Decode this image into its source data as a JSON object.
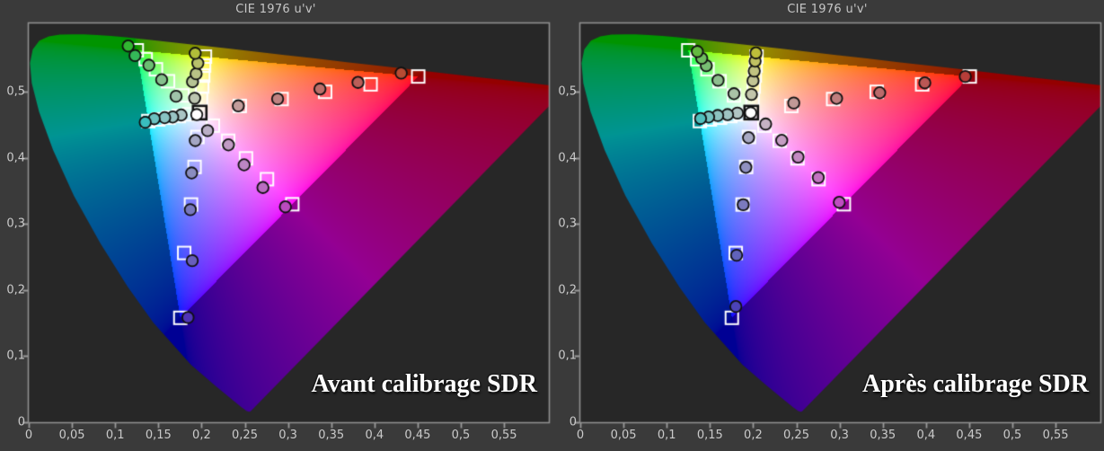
{
  "page": {
    "background_color": "#3a3a3a",
    "plot_background_color": "#272727",
    "frame_color": "#8f8f8f",
    "tick_color": "#9a9a9a",
    "axis_label_color": "#cacaca",
    "title_color": "#c6c6c6",
    "caption_color": "#ffffff",
    "target_marker_color": "#ffffff",
    "white_target_marker_color": "#141414",
    "measured_marker_outline_color": "#101010"
  },
  "axes": {
    "x_tick_values": [
      0,
      0.05,
      0.1,
      0.15,
      0.2,
      0.25,
      0.3,
      0.35,
      0.4,
      0.45,
      0.5,
      0.55
    ],
    "x_tick_labels": [
      "0",
      "0,05",
      "0,1",
      "0,15",
      "0,2",
      "0,25",
      "0,3",
      "0,35",
      "0,4",
      "0,45",
      "0,5",
      "0,55"
    ],
    "y_tick_values": [
      0,
      0.1,
      0.2,
      0.3,
      0.4,
      0.5
    ],
    "y_tick_labels": [
      "0",
      "0,1",
      "0,2",
      "0,3",
      "0,4",
      "0,5"
    ],
    "x_range": [
      0,
      0.603
    ],
    "y_range": [
      0,
      0.605
    ]
  },
  "chart_data": [
    {
      "type": "scatter",
      "title": "CIE 1976 u'v'",
      "caption": "Avant calibrage SDR",
      "white_point": {
        "target": [
          0.1978,
          0.4683
        ],
        "measured": [
          0.1944,
          0.4653
        ]
      },
      "series": [
        {
          "name": "red",
          "targets": [
            [
              0.2442,
              0.4783
            ],
            [
              0.2926,
              0.4888
            ],
            [
              0.343,
              0.4997
            ],
            [
              0.3956,
              0.511
            ],
            [
              0.4507,
              0.5229
            ]
          ],
          "measured": [
            [
              0.2425,
              0.4785
            ],
            [
              0.288,
              0.489
            ],
            [
              0.337,
              0.504
            ],
            [
              0.381,
              0.514
            ],
            [
              0.431,
              0.528
            ]
          ]
        },
        {
          "name": "green",
          "targets": [
            [
              0.1778,
              0.4942
            ],
            [
              0.1612,
              0.5157
            ],
            [
              0.1472,
              0.5338
            ],
            [
              0.1353,
              0.5491
            ],
            [
              0.125,
              0.5625
            ]
          ],
          "measured": [
            [
              0.1705,
              0.493
            ],
            [
              0.1538,
              0.518
            ],
            [
              0.139,
              0.54
            ],
            [
              0.123,
              0.5545
            ],
            [
              0.1151,
              0.569
            ]
          ]
        },
        {
          "name": "blue",
          "targets": [
            [
              0.1952,
              0.4314
            ],
            [
              0.1919,
              0.3861
            ],
            [
              0.1878,
              0.3293
            ],
            [
              0.1799,
              0.256
            ],
            [
              0.1754,
              0.1579
            ]
          ],
          "measured": [
            [
              0.1927,
              0.426
            ],
            [
              0.1885,
              0.377
            ],
            [
              0.187,
              0.3215
            ],
            [
              0.1892,
              0.2444
            ],
            [
              0.1843,
              0.1584
            ]
          ]
        },
        {
          "name": "cyan",
          "targets": [
            [
              0.1857,
              0.4657
            ],
            [
              0.1737,
              0.4631
            ],
            [
              0.1618,
              0.4605
            ],
            [
              0.15,
              0.458
            ],
            [
              0.1384,
              0.4555
            ]
          ],
          "measured": [
            [
              0.1764,
              0.4647
            ],
            [
              0.1666,
              0.4616
            ],
            [
              0.1573,
              0.4606
            ],
            [
              0.1452,
              0.459
            ],
            [
              0.1348,
              0.4537
            ]
          ]
        },
        {
          "name": "magenta",
          "targets": [
            [
              0.2131,
              0.4486
            ],
            [
              0.2308,
              0.4257
            ],
            [
              0.2514,
              0.3991
            ],
            [
              0.2757,
              0.3676
            ],
            [
              0.305,
              0.3297
            ]
          ],
          "measured": [
            [
              0.2069,
              0.441
            ],
            [
              0.2311,
              0.4195
            ],
            [
              0.2492,
              0.3893
            ],
            [
              0.271,
              0.355
            ],
            [
              0.297,
              0.3258
            ]
          ]
        },
        {
          "name": "yellow",
          "targets": [
            [
              0.1993,
              0.4891
            ],
            [
              0.2007,
              0.5076
            ],
            [
              0.2019,
              0.5242
            ],
            [
              0.2029,
              0.5393
            ],
            [
              0.2039,
              0.553
            ]
          ],
          "measured": [
            [
              0.192,
              0.49
            ],
            [
              0.1895,
              0.515
            ],
            [
              0.1937,
              0.527
            ],
            [
              0.1957,
              0.543
            ],
            [
              0.1926,
              0.558
            ]
          ]
        }
      ]
    },
    {
      "type": "scatter",
      "title": "CIE 1976 u'v'",
      "caption": "Après calibrage SDR",
      "white_point": {
        "target": [
          0.1978,
          0.4683
        ],
        "measured": [
          0.1972,
          0.468
        ]
      },
      "series": [
        {
          "name": "red",
          "targets": [
            [
              0.2442,
              0.4783
            ],
            [
              0.2926,
              0.4888
            ],
            [
              0.343,
              0.4997
            ],
            [
              0.3956,
              0.511
            ],
            [
              0.4507,
              0.5229
            ]
          ],
          "measured": [
            [
              0.247,
              0.4828
            ],
            [
              0.2966,
              0.4898
            ],
            [
              0.3465,
              0.4983
            ],
            [
              0.3987,
              0.5133
            ],
            [
              0.4455,
              0.5229
            ]
          ]
        },
        {
          "name": "green",
          "targets": [
            [
              0.1778,
              0.4942
            ],
            [
              0.1612,
              0.5157
            ],
            [
              0.1472,
              0.5338
            ],
            [
              0.1353,
              0.5491
            ],
            [
              0.125,
              0.5625
            ]
          ],
          "measured": [
            [
              0.1778,
              0.4969
            ],
            [
              0.1594,
              0.5171
            ],
            [
              0.1458,
              0.5393
            ],
            [
              0.1405,
              0.5505
            ],
            [
              0.1354,
              0.5607
            ]
          ]
        },
        {
          "name": "blue",
          "targets": [
            [
              0.1952,
              0.4314
            ],
            [
              0.1919,
              0.3861
            ],
            [
              0.1878,
              0.3293
            ],
            [
              0.1799,
              0.256
            ],
            [
              0.1754,
              0.1579
            ]
          ],
          "measured": [
            [
              0.1947,
              0.4304
            ],
            [
              0.1916,
              0.3855
            ],
            [
              0.1885,
              0.329
            ],
            [
              0.1809,
              0.2526
            ],
            [
              0.18,
              0.175
            ]
          ]
        },
        {
          "name": "cyan",
          "targets": [
            [
              0.1857,
              0.4657
            ],
            [
              0.1737,
              0.4631
            ],
            [
              0.1618,
              0.4605
            ],
            [
              0.15,
              0.458
            ],
            [
              0.1384,
              0.4555
            ]
          ],
          "measured": [
            [
              0.1818,
              0.4675
            ],
            [
              0.1704,
              0.4653
            ],
            [
              0.159,
              0.4639
            ],
            [
              0.1485,
              0.4616
            ],
            [
              0.1392,
              0.4593
            ]
          ]
        },
        {
          "name": "magenta",
          "targets": [
            [
              0.2131,
              0.4486
            ],
            [
              0.2308,
              0.4257
            ],
            [
              0.2514,
              0.3991
            ],
            [
              0.2757,
              0.3676
            ],
            [
              0.305,
              0.3297
            ]
          ],
          "measured": [
            [
              0.2145,
              0.451
            ],
            [
              0.2331,
              0.4263
            ],
            [
              0.252,
              0.401
            ],
            [
              0.2754,
              0.3701
            ],
            [
              0.2997,
              0.3326
            ]
          ]
        },
        {
          "name": "yellow",
          "targets": [
            [
              0.1993,
              0.4891
            ],
            [
              0.2007,
              0.5076
            ],
            [
              0.2019,
              0.5242
            ],
            [
              0.2029,
              0.5393
            ],
            [
              0.2039,
              0.553
            ]
          ],
          "measured": [
            [
              0.1981,
              0.4958
            ],
            [
              0.1999,
              0.5164
            ],
            [
              0.2013,
              0.5311
            ],
            [
              0.2023,
              0.5462
            ],
            [
              0.2033,
              0.5585
            ]
          ]
        }
      ]
    }
  ]
}
